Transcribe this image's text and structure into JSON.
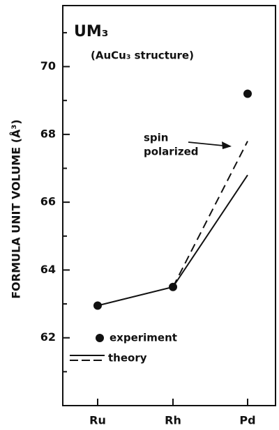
{
  "chart_data": {
    "type": "line",
    "title": "UM₃",
    "subtitle": "(AuCu₃ structure)",
    "y_label": "FORMULA UNIT VOLUME (Å³)",
    "categories": [
      "Ru",
      "Rh",
      "Pd"
    ],
    "series": [
      {
        "name": "experiment",
        "style": "points",
        "color": "#111111",
        "values": [
          62.95,
          63.5,
          69.2
        ]
      },
      {
        "name": "theory",
        "style": "solid",
        "color": "#111111",
        "values": [
          62.95,
          63.5,
          66.8
        ]
      },
      {
        "style": "dashed",
        "color": "#111111",
        "values": [
          null,
          63.5,
          67.8
        ]
      }
    ],
    "annotation": {
      "lines": [
        "spin",
        "polarized"
      ]
    },
    "ylim": [
      60,
      71.8
    ],
    "yticks": [
      62,
      64,
      66,
      68,
      70
    ],
    "minor_yticks": [
      61,
      63,
      65,
      67,
      69,
      71
    ]
  }
}
